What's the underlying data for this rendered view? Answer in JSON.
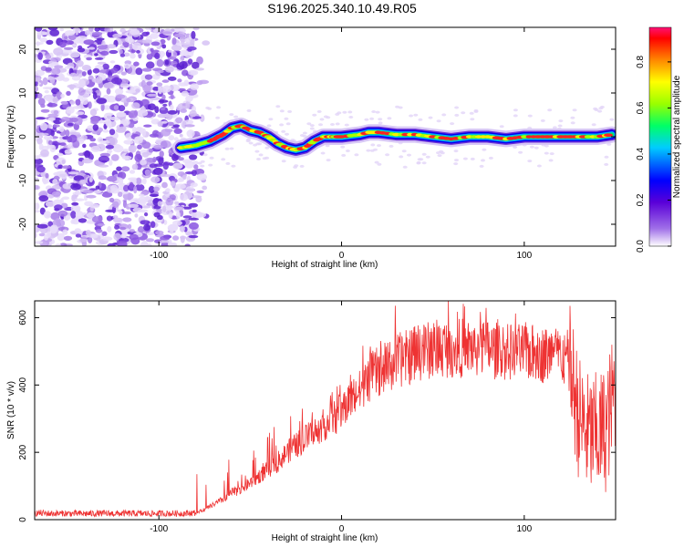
{
  "title": "S196.2025.340.10.49.R05",
  "chart_data": [
    {
      "type": "heatmap",
      "title": "S196.2025.340.10.49.R05",
      "xlabel": "Height of straight line (km)",
      "ylabel": "Frequency (Hz)",
      "xlim": [
        -168,
        150
      ],
      "ylim": [
        -25,
        25
      ],
      "xticks": [
        -100,
        0,
        100
      ],
      "xtick_labels": [
        "-100",
        "0",
        "100"
      ],
      "yticks": [
        -20,
        -10,
        0,
        10,
        20
      ],
      "ytick_labels": [
        "-20",
        "-10",
        "0",
        "10",
        "20"
      ],
      "noise_region_x": [
        -168,
        -80
      ],
      "signal_line": {
        "x": [
          -88,
          -80,
          -72,
          -65,
          -60,
          -55,
          -50,
          -45,
          -40,
          -35,
          -30,
          -25,
          -20,
          -15,
          -10,
          -5,
          0,
          10,
          15,
          20,
          30,
          40,
          50,
          60,
          70,
          80,
          90,
          100,
          110,
          120,
          130,
          140,
          148
        ],
        "y": [
          -2.5,
          -2,
          -1,
          0.5,
          2,
          2.5,
          1.5,
          1,
          0,
          -1.5,
          -2.5,
          -3,
          -2.5,
          -1,
          0,
          0,
          0,
          0.5,
          1,
          1,
          0.5,
          0.5,
          0,
          -0.5,
          0,
          0,
          -0.5,
          0,
          0,
          0,
          0,
          0,
          0.5
        ]
      },
      "colorbar": {
        "label": "Normalized spectral amplitude",
        "range": [
          0,
          0.95
        ],
        "ticks": [
          0.0,
          0.2,
          0.4,
          0.6,
          0.8
        ],
        "tick_labels": [
          "0.0",
          "0.2",
          "0.4",
          "0.6",
          "0.8"
        ]
      }
    },
    {
      "type": "line",
      "xlabel": "Height of straight line (km)",
      "ylabel": "SNR (10 * v/v)",
      "xlim": [
        -168,
        150
      ],
      "ylim": [
        0,
        650
      ],
      "xticks": [
        -100,
        0,
        100
      ],
      "xtick_labels": [
        "-100",
        "0",
        "100"
      ],
      "yticks": [
        0,
        200,
        400,
        600
      ],
      "ytick_labels": [
        "0",
        "200",
        "400",
        "600"
      ],
      "color": "#ee3333",
      "series": [
        {
          "name": "SNR",
          "x": [
            -168,
            -160,
            -140,
            -120,
            -100,
            -90,
            -80,
            -75,
            -70,
            -65,
            -60,
            -55,
            -50,
            -45,
            -40,
            -35,
            -30,
            -25,
            -20,
            -15,
            -10,
            -5,
            0,
            5,
            10,
            15,
            20,
            25,
            30,
            35,
            40,
            45,
            50,
            55,
            60,
            65,
            70,
            75,
            80,
            85,
            90,
            95,
            100,
            105,
            110,
            115,
            120,
            125,
            130,
            135,
            140,
            145,
            150
          ],
          "values": [
            20,
            18,
            18,
            18,
            18,
            18,
            20,
            30,
            45,
            60,
            80,
            90,
            110,
            130,
            150,
            170,
            200,
            220,
            240,
            260,
            280,
            300,
            320,
            360,
            380,
            420,
            440,
            450,
            470,
            480,
            490,
            500,
            505,
            510,
            510,
            510,
            510,
            510,
            510,
            500,
            500,
            495,
            500,
            495,
            490,
            490,
            490,
            450,
            300,
            250,
            250,
            270,
            400
          ]
        }
      ]
    }
  ]
}
